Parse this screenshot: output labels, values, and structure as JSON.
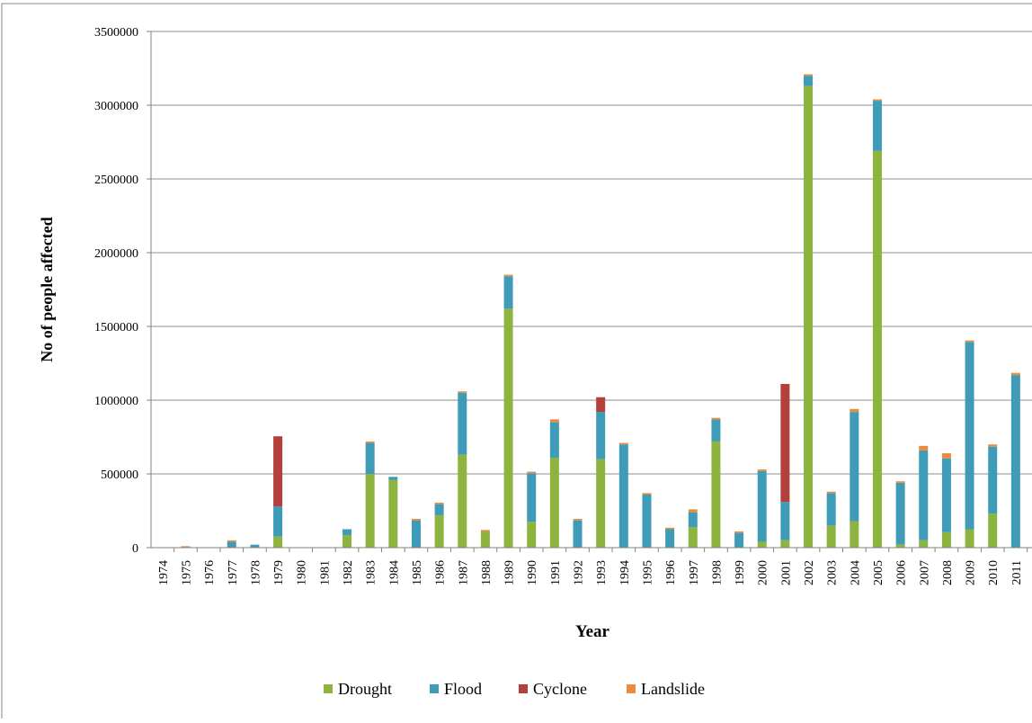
{
  "chart_data": {
    "type": "bar",
    "stacked": true,
    "title": "",
    "xlabel": "Year",
    "ylabel": "No of people affected",
    "ylim": [
      0,
      3500000
    ],
    "yticks": [
      0,
      500000,
      1000000,
      1500000,
      2000000,
      2500000,
      3000000,
      3500000
    ],
    "ytick_labels": [
      "0",
      "500000",
      "1000000",
      "1500000",
      "2000000",
      "2500000",
      "3000000",
      "3500000"
    ],
    "grid": true,
    "legend_position": "bottom",
    "categories": [
      "1974",
      "1975",
      "1976",
      "1977",
      "1978",
      "1979",
      "1980",
      "1981",
      "1982",
      "1983",
      "1984",
      "1985",
      "1986",
      "1987",
      "1988",
      "1989",
      "1990",
      "1991",
      "1992",
      "1993",
      "1994",
      "1995",
      "1996",
      "1997",
      "1998",
      "1999",
      "2000",
      "2001",
      "2002",
      "2003",
      "2004",
      "2005",
      "2006",
      "2007",
      "2008",
      "2009",
      "2010",
      "2011"
    ],
    "series": [
      {
        "name": "Drought",
        "color": "#8db43f",
        "values": [
          0,
          0,
          0,
          0,
          0,
          75000,
          0,
          0,
          85000,
          500000,
          460000,
          0,
          220000,
          630000,
          110000,
          1620000,
          175000,
          610000,
          0,
          600000,
          0,
          0,
          0,
          140000,
          720000,
          0,
          40000,
          50000,
          3130000,
          150000,
          180000,
          2690000,
          20000,
          50000,
          105000,
          125000,
          230000,
          0
        ]
      },
      {
        "name": "Flood",
        "color": "#3f9cb8",
        "values": [
          0,
          0,
          0,
          40000,
          20000,
          205000,
          0,
          0,
          40000,
          210000,
          20000,
          185000,
          75000,
          420000,
          0,
          220000,
          330000,
          240000,
          185000,
          320000,
          700000,
          360000,
          125000,
          100000,
          150000,
          100000,
          480000,
          260000,
          70000,
          220000,
          740000,
          340000,
          420000,
          610000,
          500000,
          1270000,
          455000,
          1170000
        ]
      },
      {
        "name": "Cyclone",
        "color": "#b2403b",
        "values": [
          0,
          0,
          0,
          0,
          0,
          475000,
          0,
          0,
          0,
          0,
          0,
          0,
          0,
          0,
          0,
          0,
          0,
          0,
          0,
          100000,
          0,
          0,
          0,
          0,
          0,
          0,
          0,
          800000,
          0,
          0,
          0,
          0,
          0,
          0,
          0,
          0,
          0,
          0
        ]
      },
      {
        "name": "Landslide",
        "color": "#ee8a3b",
        "values": [
          0,
          10000,
          0,
          10000,
          0,
          0,
          0,
          0,
          0,
          10000,
          0,
          10000,
          10000,
          10000,
          10000,
          10000,
          10000,
          20000,
          10000,
          0,
          10000,
          10000,
          10000,
          20000,
          10000,
          10000,
          10000,
          0,
          10000,
          10000,
          20000,
          10000,
          10000,
          30000,
          35000,
          10000,
          15000,
          15000
        ]
      }
    ]
  }
}
